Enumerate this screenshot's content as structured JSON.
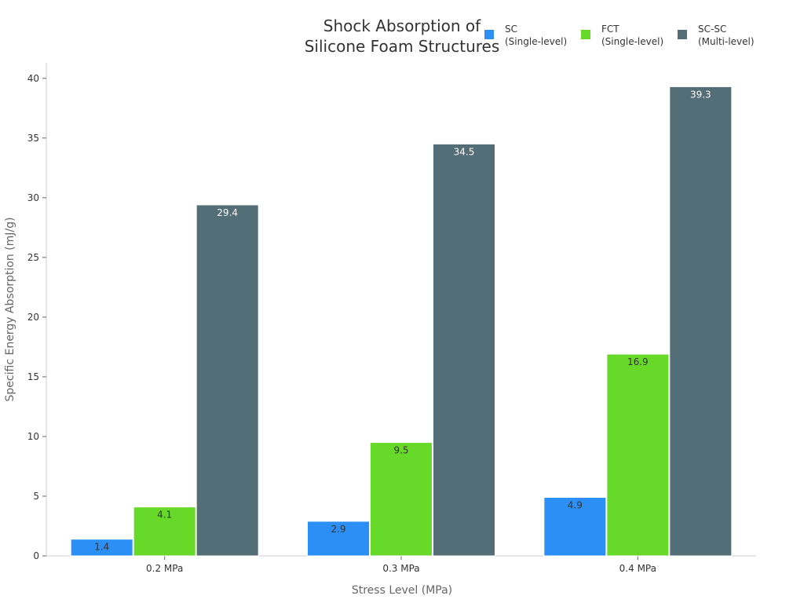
{
  "chart_data": {
    "type": "bar",
    "title_lines": [
      "Shock Absorption of",
      "Silicone Foam Structures"
    ],
    "xlabel": "Stress Level (MPa)",
    "ylabel": "Specific Energy Absorption (mJ/g)",
    "categories": [
      "0.2 MPa",
      "0.3 MPa",
      "0.4 MPa"
    ],
    "ylim": [
      0,
      41.3
    ],
    "yticks": [
      0,
      5,
      10,
      15,
      20,
      25,
      30,
      35,
      40
    ],
    "grid": false,
    "legend_position": "top-right",
    "series": [
      {
        "name_lines": [
          "SC",
          "(Single-level)"
        ],
        "color": "#2b8ff5",
        "label_color": "#333333",
        "values": [
          1.4,
          2.9,
          4.9
        ]
      },
      {
        "name_lines": [
          "FCT",
          "(Single-level)"
        ],
        "color": "#67d929",
        "label_color": "#333333",
        "values": [
          4.1,
          9.5,
          16.9
        ]
      },
      {
        "name_lines": [
          "SC-SC",
          "(Multi-level)"
        ],
        "color": "#546e78",
        "label_color": "#ffffff",
        "values": [
          29.4,
          34.5,
          39.3
        ]
      }
    ]
  }
}
